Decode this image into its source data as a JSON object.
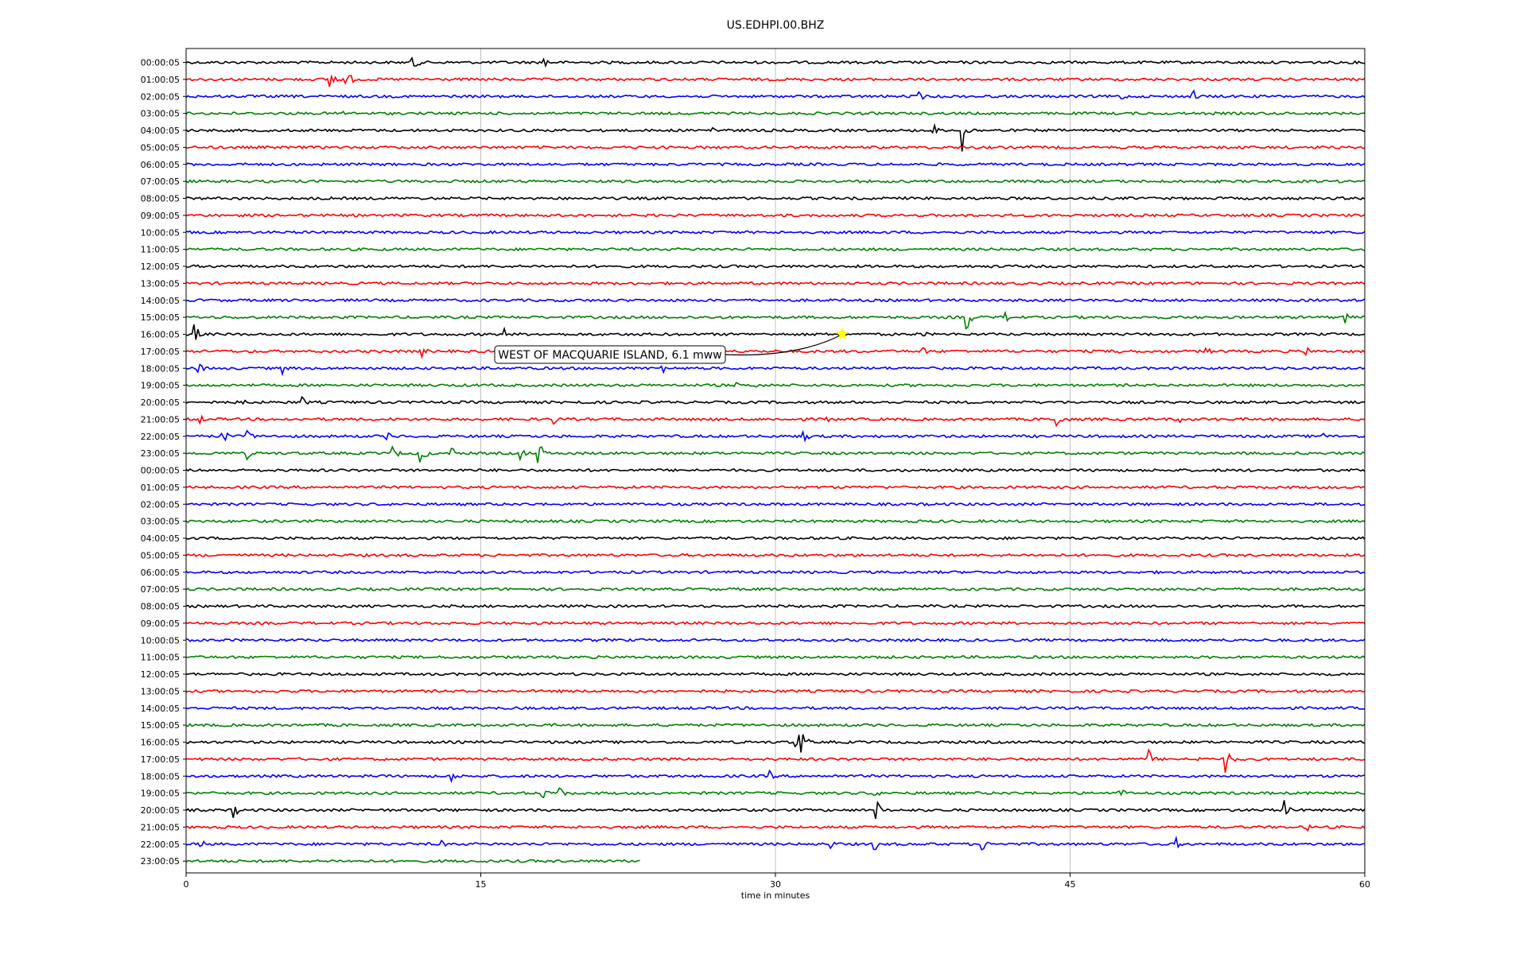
{
  "chart_data": {
    "type": "line",
    "title": "US.EDHPI.00.BHZ",
    "xlabel": "time in minutes",
    "ylabel": "",
    "xlim": [
      0,
      60
    ],
    "x_ticks": [
      "0",
      "15",
      "30",
      "45",
      "60"
    ],
    "x_tick_values": [
      0,
      15,
      30,
      45,
      60
    ],
    "grid": "vertical",
    "trace_colors": [
      "#000000",
      "#ff0000",
      "#0000ff",
      "#008000"
    ],
    "row_labels": [
      "00:00:05",
      "01:00:05",
      "02:00:05",
      "03:00:05",
      "04:00:05",
      "05:00:05",
      "06:00:05",
      "07:00:05",
      "08:00:05",
      "09:00:05",
      "10:00:05",
      "11:00:05",
      "12:00:05",
      "13:00:05",
      "14:00:05",
      "15:00:05",
      "16:00:05",
      "17:00:05",
      "18:00:05",
      "19:00:05",
      "20:00:05",
      "21:00:05",
      "22:00:05",
      "23:00:05",
      "00:00:05",
      "01:00:05",
      "02:00:05",
      "03:00:05",
      "04:00:05",
      "05:00:05",
      "06:00:05",
      "07:00:05",
      "08:00:05",
      "09:00:05",
      "10:00:05",
      "11:00:05",
      "12:00:05",
      "13:00:05",
      "14:00:05",
      "15:00:05",
      "16:00:05",
      "17:00:05",
      "18:00:05",
      "19:00:05",
      "20:00:05",
      "21:00:05",
      "22:00:05",
      "23:00:05"
    ],
    "last_trace_end_minutes": 23.1,
    "events": [
      {
        "row": 0,
        "minute": 11.5,
        "amp": 1.2
      },
      {
        "row": 0,
        "minute": 18.2,
        "amp": 0.8
      },
      {
        "row": 1,
        "minute": 7.3,
        "amp": 1.6
      },
      {
        "row": 1,
        "minute": 8.1,
        "amp": 1.4
      },
      {
        "row": 2,
        "minute": 37.3,
        "amp": 0.6
      },
      {
        "row": 2,
        "minute": 47.6,
        "amp": 0.5
      },
      {
        "row": 2,
        "minute": 51.2,
        "amp": 0.9
      },
      {
        "row": 3,
        "minute": 7.9,
        "amp": 0.5
      },
      {
        "row": 4,
        "minute": 26.8,
        "amp": 0.7
      },
      {
        "row": 4,
        "minute": 38.0,
        "amp": 0.8
      },
      {
        "row": 4,
        "minute": 39.5,
        "amp": 2.4
      },
      {
        "row": 5,
        "minute": 53.8,
        "amp": 0.3
      },
      {
        "row": 15,
        "minute": 39.7,
        "amp": 1.6
      },
      {
        "row": 15,
        "minute": 41.7,
        "amp": 0.6
      },
      {
        "row": 15,
        "minute": 59.0,
        "amp": 0.8
      },
      {
        "row": 16,
        "minute": 0.4,
        "amp": 1.2
      },
      {
        "row": 16,
        "minute": 16.2,
        "amp": 0.6
      },
      {
        "row": 16,
        "minute": 37.5,
        "amp": 0.4
      },
      {
        "row": 17,
        "minute": 12.0,
        "amp": 0.6
      },
      {
        "row": 17,
        "minute": 37.4,
        "amp": 0.7
      },
      {
        "row": 17,
        "minute": 47.5,
        "amp": 0.5
      },
      {
        "row": 17,
        "minute": 51.9,
        "amp": 0.6
      },
      {
        "row": 17,
        "minute": 57.0,
        "amp": 0.6
      },
      {
        "row": 18,
        "minute": 0.6,
        "amp": 0.7
      },
      {
        "row": 18,
        "minute": 4.9,
        "amp": 0.6
      },
      {
        "row": 18,
        "minute": 24.2,
        "amp": 0.6
      },
      {
        "row": 19,
        "minute": 27.8,
        "amp": 0.6
      },
      {
        "row": 19,
        "minute": 29.0,
        "amp": 0.6
      },
      {
        "row": 20,
        "minute": 2.9,
        "amp": 0.7
      },
      {
        "row": 20,
        "minute": 5.9,
        "amp": 0.6
      },
      {
        "row": 20,
        "minute": 19.8,
        "amp": 0.6
      },
      {
        "row": 21,
        "minute": 0.6,
        "amp": 0.7
      },
      {
        "row": 21,
        "minute": 18.7,
        "amp": 0.6
      },
      {
        "row": 21,
        "minute": 32.5,
        "amp": 0.7
      },
      {
        "row": 21,
        "minute": 44.3,
        "amp": 1.0
      },
      {
        "row": 21,
        "minute": 50.5,
        "amp": 0.5
      },
      {
        "row": 22,
        "minute": 1.8,
        "amp": 1.0
      },
      {
        "row": 22,
        "minute": 3.1,
        "amp": 0.8
      },
      {
        "row": 22,
        "minute": 10.2,
        "amp": 0.7
      },
      {
        "row": 22,
        "minute": 31.4,
        "amp": 0.8
      },
      {
        "row": 22,
        "minute": 57.8,
        "amp": 0.5
      },
      {
        "row": 23,
        "minute": 3.1,
        "amp": 0.6
      },
      {
        "row": 23,
        "minute": 10.5,
        "amp": 0.9
      },
      {
        "row": 23,
        "minute": 11.9,
        "amp": 1.4
      },
      {
        "row": 23,
        "minute": 13.5,
        "amp": 0.7
      },
      {
        "row": 23,
        "minute": 17.0,
        "amp": 0.8
      },
      {
        "row": 23,
        "minute": 17.9,
        "amp": 1.4
      },
      {
        "row": 24,
        "minute": 4.1,
        "amp": 0.3
      },
      {
        "row": 40,
        "minute": 30.9,
        "amp": 0.8
      },
      {
        "row": 40,
        "minute": 31.2,
        "amp": 2.0
      },
      {
        "row": 41,
        "minute": 49.0,
        "amp": 1.0
      },
      {
        "row": 41,
        "minute": 51.3,
        "amp": 0.6
      },
      {
        "row": 41,
        "minute": 52.9,
        "amp": 1.5
      },
      {
        "row": 42,
        "minute": 9.5,
        "amp": 0.6
      },
      {
        "row": 42,
        "minute": 13.5,
        "amp": 0.6
      },
      {
        "row": 42,
        "minute": 29.7,
        "amp": 0.6
      },
      {
        "row": 43,
        "minute": 18.1,
        "amp": 0.7
      },
      {
        "row": 43,
        "minute": 19.0,
        "amp": 0.8
      },
      {
        "row": 43,
        "minute": 35.0,
        "amp": 0.6
      },
      {
        "row": 43,
        "minute": 47.5,
        "amp": 0.8
      },
      {
        "row": 44,
        "minute": 2.4,
        "amp": 0.8
      },
      {
        "row": 44,
        "minute": 35.1,
        "amp": 1.2
      },
      {
        "row": 44,
        "minute": 55.9,
        "amp": 1.0
      },
      {
        "row": 45,
        "minute": 57.0,
        "amp": 0.6
      },
      {
        "row": 46,
        "minute": 0.7,
        "amp": 0.6
      },
      {
        "row": 46,
        "minute": 12.9,
        "amp": 0.6
      },
      {
        "row": 46,
        "minute": 32.8,
        "amp": 0.5
      },
      {
        "row": 46,
        "minute": 35.0,
        "amp": 0.8
      },
      {
        "row": 46,
        "minute": 40.5,
        "amp": 0.8
      },
      {
        "row": 46,
        "minute": 50.4,
        "amp": 0.6
      }
    ],
    "annotation": {
      "text": "WEST OF MACQUARIE ISLAND, 6.1 mww",
      "row": 16,
      "minute": 33.4,
      "marker": "star",
      "marker_color": "#ffff00"
    }
  }
}
